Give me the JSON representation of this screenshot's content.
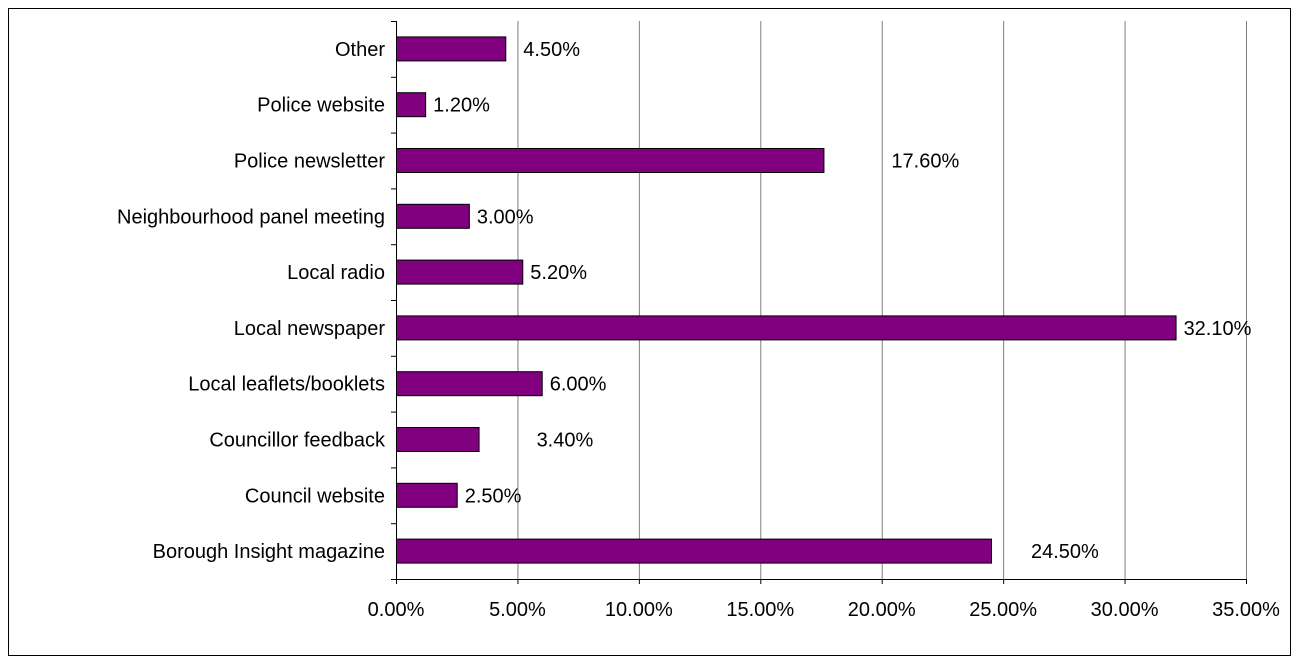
{
  "chart_data": {
    "type": "bar",
    "orientation": "horizontal",
    "categories": [
      "Borough Insight magazine",
      "Council website",
      "Councillor feedback",
      "Local leaflets/booklets",
      "Local newspaper",
      "Local radio",
      "Neighbourhood panel meeting",
      "Police newsletter",
      "Police website",
      "Other"
    ],
    "values": [
      24.5,
      2.5,
      3.4,
      6.0,
      32.1,
      5.2,
      3.0,
      17.6,
      1.2,
      4.5
    ],
    "data_labels": [
      "24.50%",
      "2.50%",
      "3.40%",
      "6.00%",
      "32.10%",
      "5.20%",
      "3.00%",
      "17.60%",
      "1.20%",
      "4.50%"
    ],
    "xlim": [
      0,
      35
    ],
    "x_ticks": [
      0,
      5,
      10,
      15,
      20,
      25,
      30,
      35
    ],
    "x_tick_labels": [
      "0.00%",
      "5.00%",
      "10.00%",
      "15.00%",
      "20.00%",
      "25.00%",
      "30.00%",
      "35.00%"
    ],
    "title": "",
    "xlabel": "",
    "ylabel": "",
    "grid": "vertical",
    "legend": "none",
    "bar_color": "#800080",
    "bar_edge_color": "#000000"
  }
}
